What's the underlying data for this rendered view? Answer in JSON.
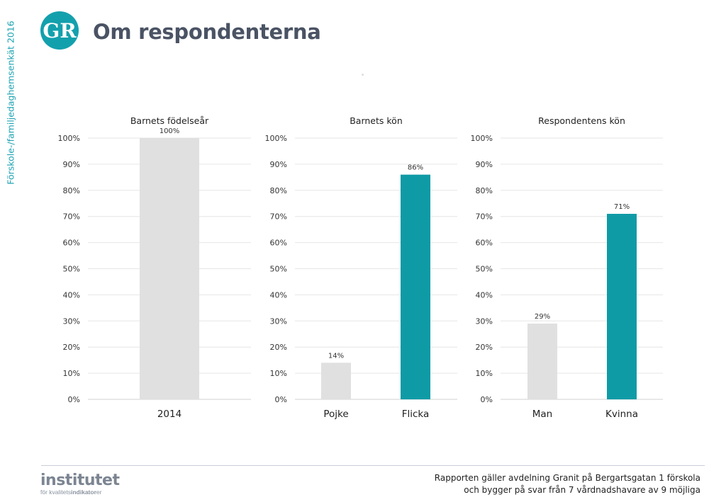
{
  "side_label": "Förskole-/familjedaghemsenkät 2016",
  "logo_text": "GR",
  "page_title": "Om respondenterna",
  "footer": {
    "line1": "Rapporten gäller avdelning Granit  på Bergartsgatan 1 förskola",
    "line2": "och bygger på svar från 7 vårdnadshavare av 9 möjliga",
    "brand_big": "institutet",
    "brand_small_prefix": "för kvalitets",
    "brand_small_bold": "indikator",
    "brand_small_suffix": "er"
  },
  "colors": {
    "accent": "#0f9ba6",
    "neutral": "#e0e0e0",
    "title": "#4a5364",
    "side": "#1ea3b3"
  },
  "chart_data": [
    {
      "type": "bar",
      "title": "Barnets födelseår",
      "categories": [
        "2014"
      ],
      "values": [
        100
      ],
      "value_labels": [
        "100%"
      ],
      "bar_colors": [
        "#e0e0e0"
      ],
      "ylim": [
        0,
        100
      ],
      "yticks": [
        "0%",
        "10%",
        "20%",
        "30%",
        "40%",
        "50%",
        "60%",
        "70%",
        "80%",
        "90%",
        "100%"
      ],
      "grid": true
    },
    {
      "type": "bar",
      "title": "Barnets kön",
      "categories": [
        "Pojke",
        "Flicka"
      ],
      "values": [
        14,
        86
      ],
      "value_labels": [
        "14%",
        "86%"
      ],
      "bar_colors": [
        "#e0e0e0",
        "#0f9ba6"
      ],
      "ylim": [
        0,
        100
      ],
      "yticks": [
        "0%",
        "10%",
        "20%",
        "30%",
        "40%",
        "50%",
        "60%",
        "70%",
        "80%",
        "90%",
        "100%"
      ],
      "grid": true
    },
    {
      "type": "bar",
      "title": "Respondentens kön",
      "categories": [
        "Man",
        "Kvinna"
      ],
      "values": [
        29,
        71
      ],
      "value_labels": [
        "29%",
        "71%"
      ],
      "bar_colors": [
        "#e0e0e0",
        "#0f9ba6"
      ],
      "ylim": [
        0,
        100
      ],
      "yticks": [
        "0%",
        "10%",
        "20%",
        "30%",
        "40%",
        "50%",
        "60%",
        "70%",
        "80%",
        "90%",
        "100%"
      ],
      "grid": true
    }
  ]
}
